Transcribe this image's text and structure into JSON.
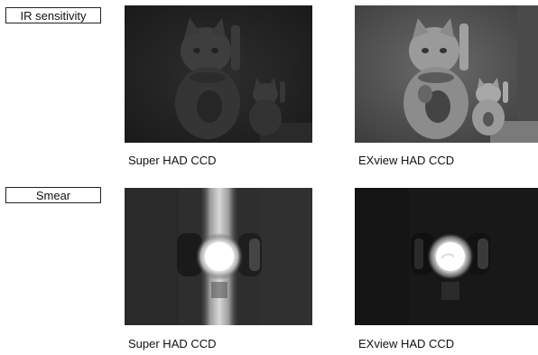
{
  "sections": [
    {
      "label": "IR sensitivity",
      "left": {
        "caption": "Super HAD CCD"
      },
      "right": {
        "caption": "EXview HAD CCD"
      }
    },
    {
      "label": "Smear",
      "left": {
        "caption": "Super HAD CCD"
      },
      "right": {
        "caption": "EXview HAD CCD"
      }
    }
  ]
}
